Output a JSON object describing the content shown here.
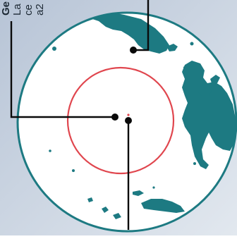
{
  "caption": {
    "line1": "Ge",
    "line2": "La",
    "line3": "ce",
    "line4": "a2"
  },
  "colors": {
    "background_top": "#b7c4d6",
    "background_bottom": "#dfe6ee",
    "globe_fill": "#ffffff",
    "land": "#1d7a82",
    "globe_border": "#1d7a82",
    "circle": "#e0464e",
    "marker": "#0a0a0a",
    "center_dot": "#e0464e"
  },
  "icons": [
    "globe-map",
    "location-marker"
  ]
}
